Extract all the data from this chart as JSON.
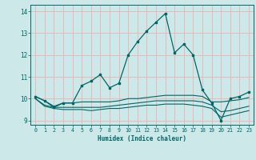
{
  "xlabel": "Humidex (Indice chaleur)",
  "xlim": [
    -0.5,
    23.5
  ],
  "ylim": [
    8.8,
    14.3
  ],
  "yticks": [
    9,
    10,
    11,
    12,
    13,
    14
  ],
  "xticks": [
    0,
    1,
    2,
    3,
    4,
    5,
    6,
    7,
    8,
    9,
    10,
    11,
    12,
    13,
    14,
    15,
    16,
    17,
    18,
    19,
    20,
    21,
    22,
    23
  ],
  "bg_color": "#cce8e8",
  "grid_color": "#e8b8b8",
  "line_color": "#006666",
  "line_with_markers": [
    10.1,
    9.9,
    9.6,
    9.8,
    9.8,
    10.6,
    10.8,
    11.1,
    10.5,
    10.7,
    12.0,
    12.6,
    13.1,
    13.5,
    13.9,
    12.1,
    12.5,
    12.0,
    10.4,
    9.8,
    9.0,
    10.0,
    10.1,
    10.3
  ],
  "line2": [
    10.1,
    9.9,
    9.65,
    9.8,
    9.8,
    9.85,
    9.85,
    9.85,
    9.85,
    9.9,
    10.0,
    10.0,
    10.05,
    10.1,
    10.15,
    10.15,
    10.15,
    10.15,
    10.1,
    9.85,
    9.85,
    9.9,
    9.95,
    10.05
  ],
  "line3": [
    10.0,
    9.7,
    9.6,
    9.6,
    9.6,
    9.6,
    9.6,
    9.6,
    9.65,
    9.7,
    9.75,
    9.8,
    9.85,
    9.9,
    9.9,
    9.9,
    9.9,
    9.9,
    9.85,
    9.7,
    9.4,
    9.45,
    9.55,
    9.65
  ],
  "line4": [
    10.0,
    9.65,
    9.55,
    9.5,
    9.5,
    9.5,
    9.45,
    9.5,
    9.55,
    9.55,
    9.6,
    9.65,
    9.7,
    9.7,
    9.75,
    9.75,
    9.75,
    9.7,
    9.65,
    9.55,
    9.15,
    9.25,
    9.35,
    9.45
  ]
}
